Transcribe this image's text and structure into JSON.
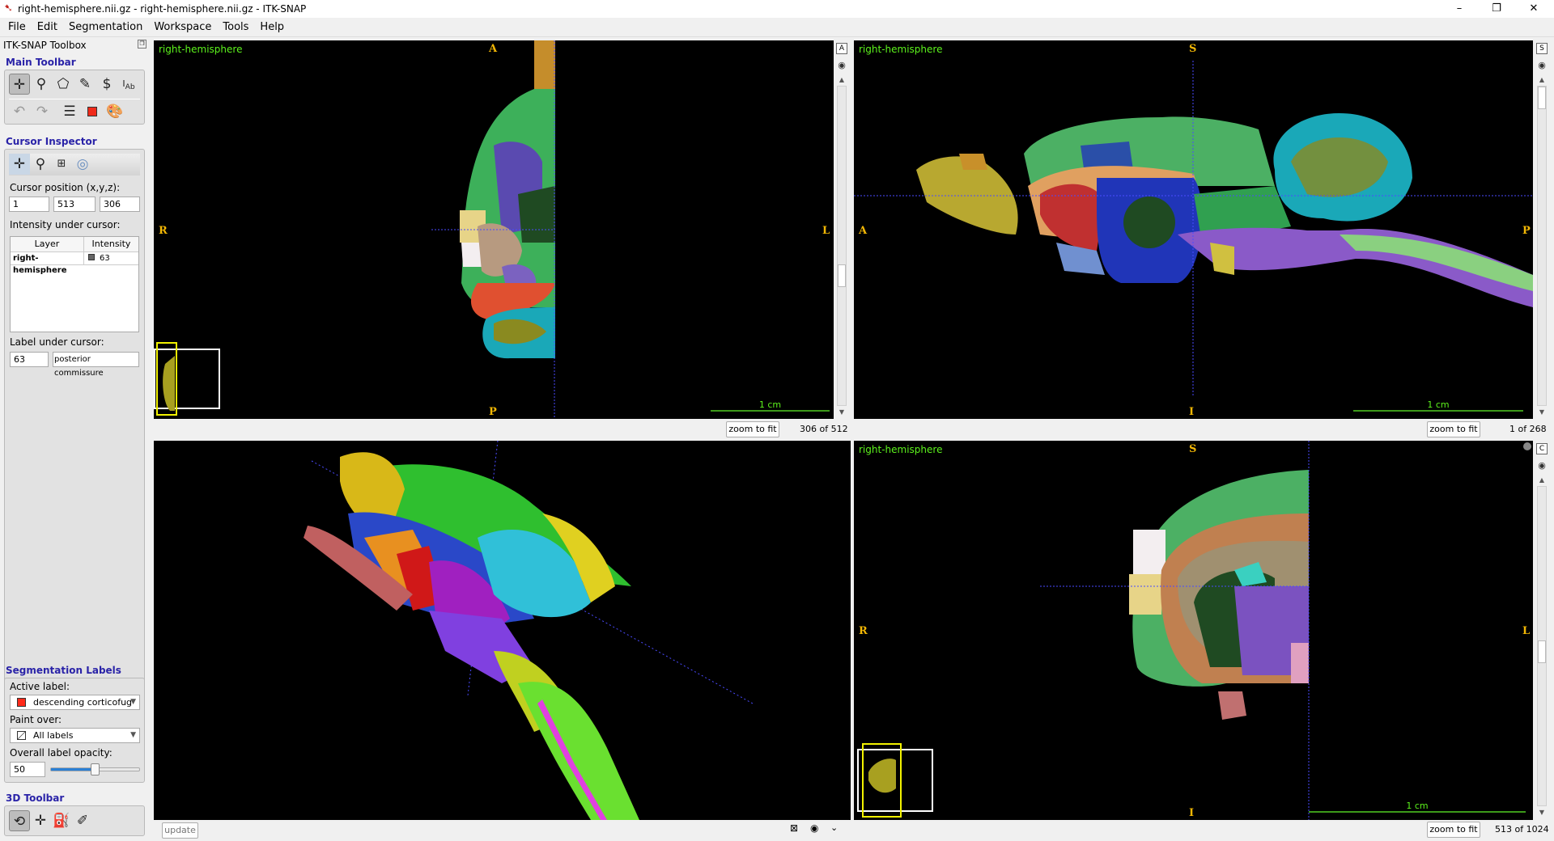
{
  "window": {
    "title": "right-hemisphere.nii.gz - right-hemisphere.nii.gz - ITK-SNAP",
    "minimize": "–",
    "maximize": "❐",
    "close": "✕"
  },
  "menu": [
    "File",
    "Edit",
    "Segmentation",
    "Workspace",
    "Tools",
    "Help"
  ],
  "toolbox": {
    "title": "ITK-SNAP Toolbox",
    "main_toolbar": {
      "heading": "Main Toolbar",
      "tools": [
        "crosshair-tool",
        "zoom-tool",
        "polygon-tool",
        "paintbrush-tool",
        "snake-tool",
        "annotation-tool"
      ],
      "actions": [
        "undo",
        "redo",
        "layers",
        "label-editor",
        "color-palette"
      ]
    },
    "cursor_inspector": {
      "heading": "Cursor Inspector",
      "position_label": "Cursor position (x,y,z):",
      "x": "1",
      "y": "513",
      "z": "306",
      "intensity_label": "Intensity under cursor:",
      "columns": [
        "Layer",
        "Intensity"
      ],
      "rows": [
        {
          "layer": "right-hemisphere",
          "intensity": "63"
        }
      ],
      "label_under_cursor": "Label under cursor:",
      "label_id": "63",
      "label_name": "posterior commissure"
    },
    "segmentation_labels": {
      "heading": "Segmentation Labels",
      "active_label_caption": "Active label:",
      "active_label": "descending corticofug",
      "active_label_color": "#ff2a1a",
      "paint_over_caption": "Paint over:",
      "paint_over": "All labels",
      "opacity_caption": "Overall label opacity:",
      "opacity": "50",
      "opacity_fraction": 0.5
    },
    "toolbar_3d": {
      "heading": "3D Toolbar"
    }
  },
  "views": {
    "axial": {
      "layer": "right-hemisphere",
      "top": "A",
      "bottom": "P",
      "left": "R",
      "right": "L",
      "scale": "1 cm",
      "strip_button": "A",
      "zoom_to_fit": "zoom to fit",
      "slice": "306 of 512"
    },
    "sagittal": {
      "layer": "right-hemisphere",
      "top": "S",
      "bottom": "I",
      "left": "A",
      "right": "P",
      "scale": "1 cm",
      "strip_button": "S",
      "zoom_to_fit": "zoom to fit",
      "slice": "1 of 268"
    },
    "render3d": {
      "update": "update"
    },
    "coronal": {
      "layer": "right-hemisphere",
      "top": "S",
      "bottom": "I",
      "left": "R",
      "right": "L",
      "scale": "1 cm",
      "strip_button": "C",
      "zoom_to_fit": "zoom to fit",
      "slice": "513 of 1024"
    }
  },
  "colors": {
    "layer_title": "#5cf21c",
    "orientation": "#f2b705",
    "crosshair": "#4a4aff",
    "section_heading": "#2a23a8"
  }
}
